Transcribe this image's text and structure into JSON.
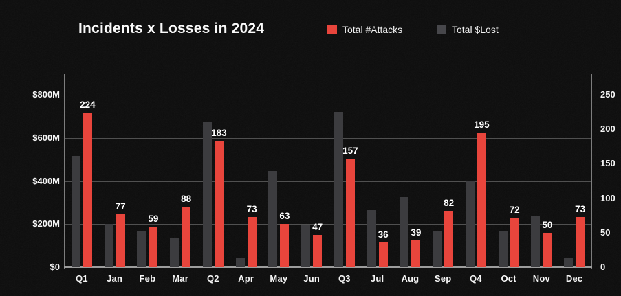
{
  "title": "Incidents x Losses in 2024",
  "legend": {
    "items": [
      {
        "id": "attacks",
        "label": "Total #Attacks",
        "color": "#e8453c"
      },
      {
        "id": "lost",
        "label": "Total $Lost",
        "color": "#47474b"
      }
    ]
  },
  "colors": {
    "background": "#0c0c0c",
    "attacks_red": "#e8453c",
    "lost_gray": "#3c3c3f",
    "gridline": "#505050",
    "axis_line": "#9d9d9d",
    "text": "#f5f5f5"
  },
  "chart_data": {
    "type": "bar",
    "title": "Incidents x Losses in 2024",
    "categories": [
      "Q1",
      "Jan",
      "Feb",
      "Mar",
      "Q2",
      "Apr",
      "May",
      "Jun",
      "Q3",
      "Jul",
      "Aug",
      "Sep",
      "Q4",
      "Oct",
      "Nov",
      "Dec"
    ],
    "series": [
      {
        "name": "Total $Lost",
        "axis": "left",
        "color": "#3c3c3f",
        "data_labels": false,
        "values": [
          515,
          200,
          170,
          135,
          675,
          45,
          445,
          195,
          720,
          265,
          325,
          165,
          400,
          170,
          240,
          40
        ]
      },
      {
        "name": "Total #Attacks",
        "axis": "right",
        "color": "#e8453c",
        "data_labels": true,
        "values": [
          224,
          77,
          59,
          88,
          183,
          73,
          63,
          47,
          157,
          36,
          39,
          82,
          195,
          72,
          50,
          73
        ]
      }
    ],
    "left_axis": {
      "min": 0,
      "max": 800,
      "ticks": [
        {
          "label": "$800M",
          "value": 800
        },
        {
          "label": "$600M",
          "value": 600
        },
        {
          "label": "$400M",
          "value": 400
        },
        {
          "label": "$200M",
          "value": 200
        },
        {
          "label": "$0",
          "value": 0
        }
      ]
    },
    "right_axis": {
      "min": 0,
      "max": 250,
      "ticks": [
        {
          "label": "250",
          "value": 250
        },
        {
          "label": "200",
          "value": 200
        },
        {
          "label": "150",
          "value": 150
        },
        {
          "label": "100",
          "value": 100
        },
        {
          "label": "50",
          "value": 50
        },
        {
          "label": "0",
          "value": 0
        }
      ]
    },
    "grid": true,
    "legend_position": "top"
  }
}
